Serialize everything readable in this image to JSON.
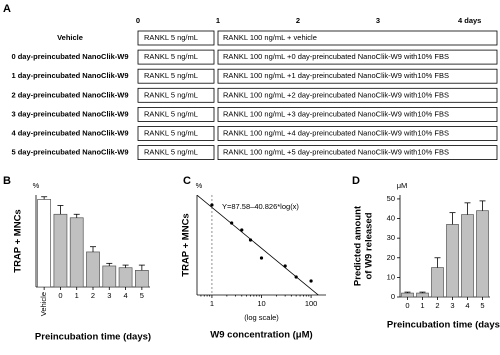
{
  "panel_a": {
    "panel_label": "A",
    "ticks": [
      {
        "value": 0,
        "label": "0"
      },
      {
        "value": 1,
        "label": "1"
      },
      {
        "value": 2,
        "label": "2"
      },
      {
        "value": 3,
        "label": "3"
      },
      {
        "value": 4,
        "label": "4 days"
      }
    ],
    "rows": [
      {
        "label": "Vehicle",
        "segments": [
          "RANKL 5 ng/mL",
          "RANKL 100 ng/mL + vehicle"
        ]
      },
      {
        "label": "0 day-preincubated NanoClik-W9",
        "segments": [
          "RANKL 5 ng/mL",
          "RANKL 100 ng/mL +0 day-preincubated NanoClik-W9 with10% FBS"
        ]
      },
      {
        "label": "1 day-preincubated NanoClik-W9",
        "segments": [
          "RANKL 5 ng/mL",
          "RANKL 100 ng/mL +1 day-preincubated NanoClik-W9 with10% FBS"
        ]
      },
      {
        "label": "2 day-preincubated NanoClik-W9",
        "segments": [
          "RANKL 5 ng/mL",
          "RANKL 100 ng/mL +2 day-preincubated NanoClik-W9 with10% FBS"
        ]
      },
      {
        "label": "3 day-preincubated NanoClik-W9",
        "segments": [
          "RANKL 5 ng/mL",
          "RANKL 100 ng/mL +3 day-preincubated NanoClik-W9 with10% FBS"
        ]
      },
      {
        "label": "4 day-preincubated NanoClik-W9",
        "segments": [
          "RANKL 5 ng/mL",
          "RANKL 100 ng/mL +4 day-preincubated NanoClik-W9 with10% FBS"
        ]
      },
      {
        "label": "5 day-preincubated NanoClik-W9",
        "segments": [
          "RANKL 5 ng/mL",
          "RANKL 100 ng/mL +5 day-preincubated NanoClik-W9 with10% FBS"
        ]
      }
    ]
  },
  "chart_data": [
    {
      "type": "bar",
      "panel_label": "B",
      "y_unit": "%",
      "y_label": "TRAP + MNCs",
      "x_label": "Preincubation time (days)",
      "categories": [
        "Vehicle",
        "0",
        "1",
        "2",
        "3",
        "4",
        "5"
      ],
      "values": [
        100,
        83,
        79,
        40,
        24,
        22,
        19
      ],
      "errors": [
        3,
        10,
        4,
        6,
        3,
        3,
        6
      ],
      "colors": [
        "#ffffff",
        "#c0c0c0",
        "#c0c0c0",
        "#c0c0c0",
        "#c0c0c0",
        "#c0c0c0",
        "#c0c0c0"
      ],
      "ylim": [
        0,
        105
      ]
    },
    {
      "type": "scatter",
      "panel_label": "C",
      "y_unit": "%",
      "y_label": "TRAP + MNCs",
      "x_label": "W9 concentration (μM)",
      "x_note": "(log scale)",
      "annotation": "Y=87.58–40.826*log(x)",
      "fit": {
        "intercept": 87.58,
        "slope": -40.826
      },
      "vline": 1,
      "x": [
        1,
        2.5,
        4,
        6,
        10,
        30,
        50,
        100
      ],
      "values": [
        90,
        72,
        65,
        55,
        37,
        29,
        18,
        14
      ],
      "xlim": [
        0.5,
        200
      ],
      "xticks": [
        1,
        10,
        100
      ],
      "ylim": [
        0,
        100
      ],
      "log_x": true,
      "color": "#000000"
    },
    {
      "type": "bar",
      "panel_label": "D",
      "y_unit": "μM",
      "y_label": [
        "Predicted amount",
        "of W9 released"
      ],
      "x_label": "Preincubation time (days)",
      "categories": [
        "0",
        "1",
        "2",
        "3",
        "4",
        "5"
      ],
      "values": [
        2,
        2,
        15,
        37,
        42,
        44
      ],
      "errors": [
        0.5,
        0.5,
        5,
        6,
        6,
        5
      ],
      "colors": [
        "#c0c0c0",
        "#c0c0c0",
        "#c0c0c0",
        "#c0c0c0",
        "#c0c0c0",
        "#c0c0c0"
      ],
      "ylim": [
        0,
        52
      ],
      "yticks": [
        0,
        10,
        20,
        30,
        40,
        50
      ]
    }
  ]
}
